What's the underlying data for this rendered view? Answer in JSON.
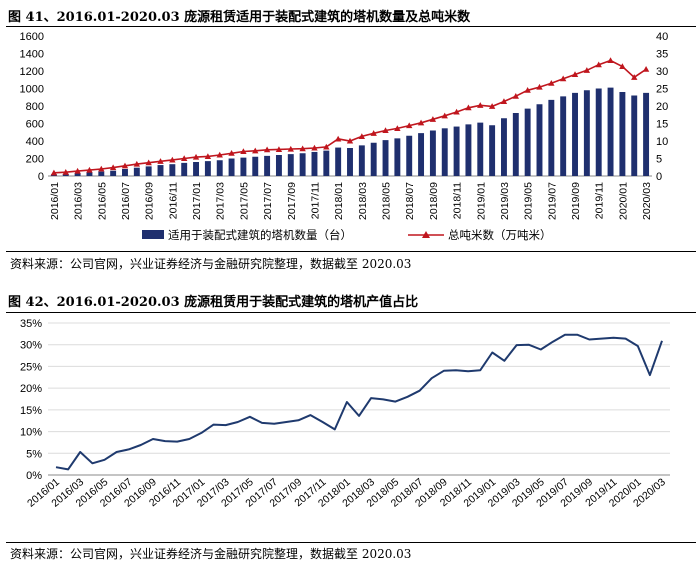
{
  "figure41": {
    "title": "图 41、2016.01-2020.03 庞源租赁适用于装配式建筑的塔机数量及总吨米数",
    "source": "资料来源：公司官网，兴业证券经济与金融研究院整理，数据截至 2020.03"
  },
  "figure42": {
    "title": "图 42、2016.01-2020.03 庞源租赁用于装配式建筑的塔机产值占比",
    "source": "资料来源：公司官网，兴业证券经济与金融研究院整理，数据截至 2020.03"
  },
  "chart_data": [
    {
      "type": "bar+line",
      "x_tick_labels": [
        "2016/01",
        "2016/03",
        "2016/05",
        "2016/07",
        "2016/09",
        "2016/11",
        "2017/01",
        "2017/03",
        "2017/05",
        "2017/07",
        "2017/09",
        "2017/11",
        "2018/01",
        "2018/03",
        "2018/05",
        "2018/07",
        "2018/09",
        "2018/11",
        "2019/01",
        "2019/03",
        "2019/05",
        "2019/07",
        "2019/09",
        "2019/11",
        "2020/01",
        "2020/03"
      ],
      "x": [
        "2016/01",
        "2016/02",
        "2016/03",
        "2016/04",
        "2016/05",
        "2016/06",
        "2016/07",
        "2016/08",
        "2016/09",
        "2016/10",
        "2016/11",
        "2016/12",
        "2017/01",
        "2017/02",
        "2017/03",
        "2017/04",
        "2017/05",
        "2017/06",
        "2017/07",
        "2017/08",
        "2017/09",
        "2017/10",
        "2017/11",
        "2017/12",
        "2018/01",
        "2018/02",
        "2018/03",
        "2018/04",
        "2018/05",
        "2018/06",
        "2018/07",
        "2018/08",
        "2018/09",
        "2018/10",
        "2018/11",
        "2018/12",
        "2019/01",
        "2019/02",
        "2019/03",
        "2019/04",
        "2019/05",
        "2019/06",
        "2019/07",
        "2019/08",
        "2019/09",
        "2019/10",
        "2019/11",
        "2019/12",
        "2020/01",
        "2020/02",
        "2020/03"
      ],
      "series": [
        {
          "name": "适用于装配式建筑的塔机数量（台）",
          "kind": "bar",
          "axis": "left",
          "color": "#1f2f6e",
          "values": [
            20,
            25,
            30,
            40,
            50,
            60,
            80,
            95,
            110,
            125,
            135,
            150,
            160,
            170,
            180,
            200,
            210,
            220,
            230,
            240,
            250,
            260,
            275,
            290,
            325,
            320,
            350,
            380,
            410,
            430,
            460,
            490,
            520,
            545,
            565,
            590,
            610,
            580,
            660,
            720,
            770,
            820,
            870,
            910,
            950,
            980,
            1000,
            1010,
            960,
            920,
            950
          ]
        },
        {
          "name": "总吨米数（万吨米）",
          "kind": "line",
          "axis": "right",
          "color": "#c0161e",
          "values": [
            0.9,
            1.1,
            1.4,
            1.7,
            2.0,
            2.4,
            2.9,
            3.4,
            3.8,
            4.2,
            4.6,
            5.0,
            5.4,
            5.6,
            6.0,
            6.5,
            7.0,
            7.2,
            7.5,
            7.6,
            7.7,
            7.8,
            8.0,
            8.3,
            10.6,
            10.0,
            11.3,
            12.2,
            13.0,
            13.6,
            14.4,
            15.2,
            16.2,
            17.2,
            18.3,
            19.5,
            20.2,
            19.9,
            21.3,
            22.8,
            24.5,
            25.4,
            26.5,
            27.8,
            29.0,
            30.2,
            31.8,
            33.0,
            31.3,
            28.2,
            30.5
          ]
        }
      ],
      "y_left": {
        "min": 0,
        "max": 1600,
        "step": 200
      },
      "y_right": {
        "min": 0,
        "max": 40,
        "step": 5
      },
      "legend": [
        "适用于装配式建筑的塔机数量（台）",
        "总吨米数（万吨米）"
      ],
      "legend_position": "bottom"
    },
    {
      "type": "line",
      "x": [
        "2016/01",
        "2016/02",
        "2016/03",
        "2016/04",
        "2016/05",
        "2016/06",
        "2016/07",
        "2016/08",
        "2016/09",
        "2016/10",
        "2016/11",
        "2016/12",
        "2017/01",
        "2017/02",
        "2017/03",
        "2017/04",
        "2017/05",
        "2017/06",
        "2017/07",
        "2017/08",
        "2017/09",
        "2017/10",
        "2017/11",
        "2017/12",
        "2018/01",
        "2018/02",
        "2018/03",
        "2018/04",
        "2018/05",
        "2018/06",
        "2018/07",
        "2018/08",
        "2018/09",
        "2018/10",
        "2018/11",
        "2018/12",
        "2019/01",
        "2019/02",
        "2019/03",
        "2019/04",
        "2019/05",
        "2019/06",
        "2019/07",
        "2019/08",
        "2019/09",
        "2019/10",
        "2019/11",
        "2019/12",
        "2020/01",
        "2020/02",
        "2020/03"
      ],
      "x_tick_labels": [
        "2016/01",
        "2016/03",
        "2016/05",
        "2016/07",
        "2016/09",
        "2016/11",
        "2017/01",
        "2017/03",
        "2017/05",
        "2017/07",
        "2017/09",
        "2017/11",
        "2018/01",
        "2018/03",
        "2018/05",
        "2018/07",
        "2018/09",
        "2018/11",
        "2019/01",
        "2019/03",
        "2019/05",
        "2019/07",
        "2019/09",
        "2019/11",
        "2020/01",
        "2020/03"
      ],
      "series": [
        {
          "kind": "line",
          "color": "#1f3a6e",
          "values": [
            1.8,
            1.3,
            5.3,
            2.7,
            3.5,
            5.3,
            5.9,
            6.9,
            8.3,
            7.8,
            7.7,
            8.3,
            9.7,
            11.6,
            11.5,
            12.2,
            13.4,
            12.0,
            11.8,
            12.2,
            12.6,
            13.8,
            12.2,
            10.5,
            16.8,
            13.6,
            17.7,
            17.4,
            16.9,
            18.0,
            19.4,
            22.3,
            24.0,
            24.1,
            23.9,
            24.1,
            28.2,
            26.3,
            29.9,
            30.0,
            28.9,
            30.7,
            32.3,
            32.3,
            31.2,
            31.4,
            31.6,
            31.4,
            29.7,
            23.0,
            30.9
          ]
        }
      ],
      "y": {
        "min": 0,
        "max": 35,
        "step": 5,
        "format": "percent"
      },
      "grid": true
    }
  ]
}
